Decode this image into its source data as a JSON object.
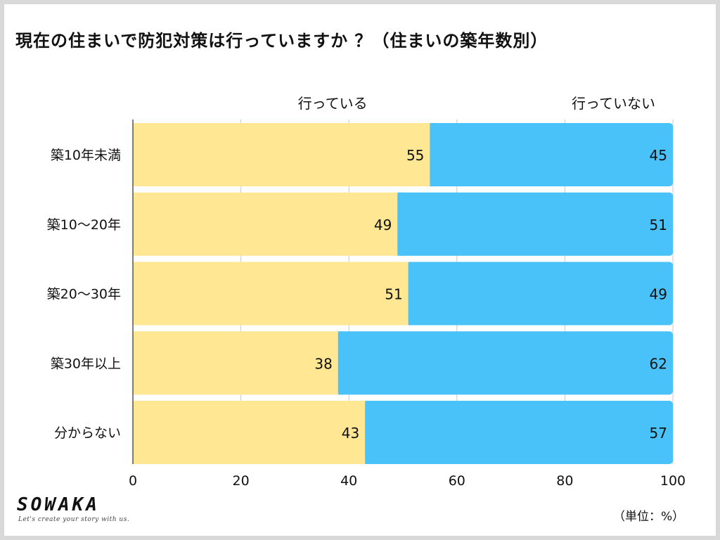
{
  "title": "現在の住まいで防犯対策は行っていますか ？（住まいの築年数別）",
  "brand": {
    "name": "SOWAKA",
    "tagline": "Let's create your story with us."
  },
  "unit_note": "（単位：%）",
  "colors": {
    "done": "#ffe794",
    "not_done": "#48c2f9",
    "grid": "#c8c8c8",
    "frame_bg": "#d9d9d9"
  },
  "chart_data": {
    "type": "bar",
    "orientation": "horizontal",
    "stacked": true,
    "categories": [
      "築10年未満",
      "築10～20年",
      "築20～30年",
      "築30年以上",
      "分からない"
    ],
    "series": [
      {
        "name": "行っている",
        "values": [
          55,
          49,
          51,
          38,
          43
        ]
      },
      {
        "name": "行っていない",
        "values": [
          45,
          51,
          49,
          62,
          57
        ]
      }
    ],
    "xlim": [
      0,
      100
    ],
    "xticks": [
      0,
      20,
      40,
      60,
      80,
      100
    ],
    "grid": true,
    "legend": "top"
  }
}
